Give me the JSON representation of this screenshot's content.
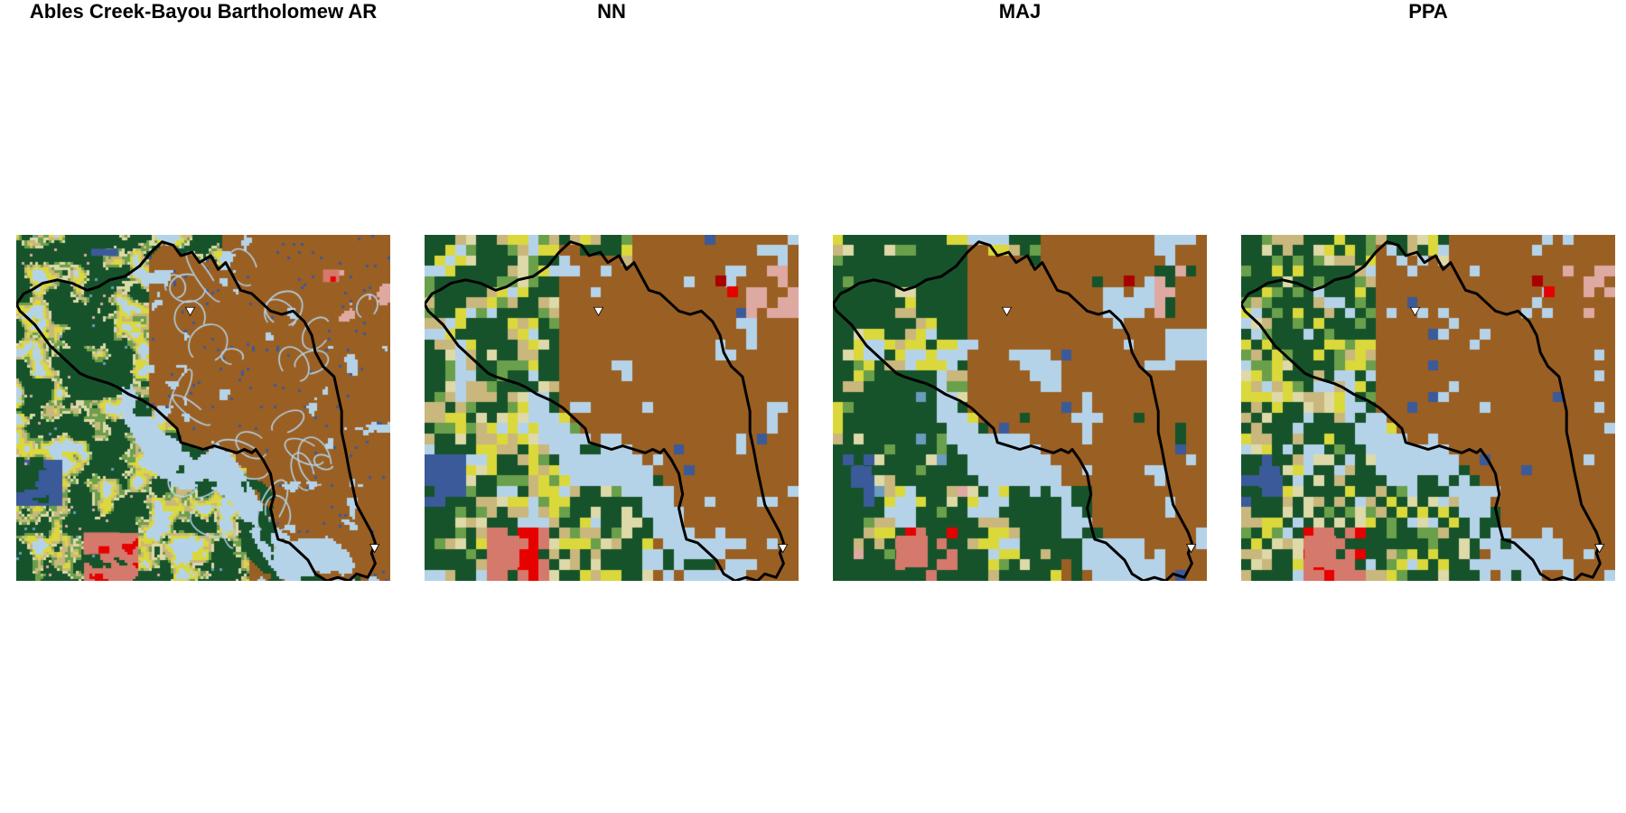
{
  "panels": [
    {
      "title": "Ables Creek-Bayou Bartholomew AR",
      "style": "fine"
    },
    {
      "title": "NN",
      "style": "nn"
    },
    {
      "title": "MAJ",
      "style": "maj"
    },
    {
      "title": "PPA",
      "style": "ppa"
    }
  ],
  "colors": {
    "cultivated": "#9a5f22",
    "forest": "#16532a",
    "wetlands": "#b5d3e8",
    "water": "#3b5a9a",
    "developed_low": "#dea9a1",
    "developed_mid": "#d5796c",
    "developed_high": "#e60000",
    "developed_max": "#a80000",
    "pasture": "#dbd83c",
    "shrub": "#c9b77d",
    "grassland": "#ded9a8",
    "mixed_forest": "#6a9f4b",
    "herbaceous_wet": "#6a9cbf",
    "boundary": "#000000",
    "outlet_marker": "#ffffff"
  },
  "icons": {
    "outlet": "outlet-triangle-icon"
  }
}
